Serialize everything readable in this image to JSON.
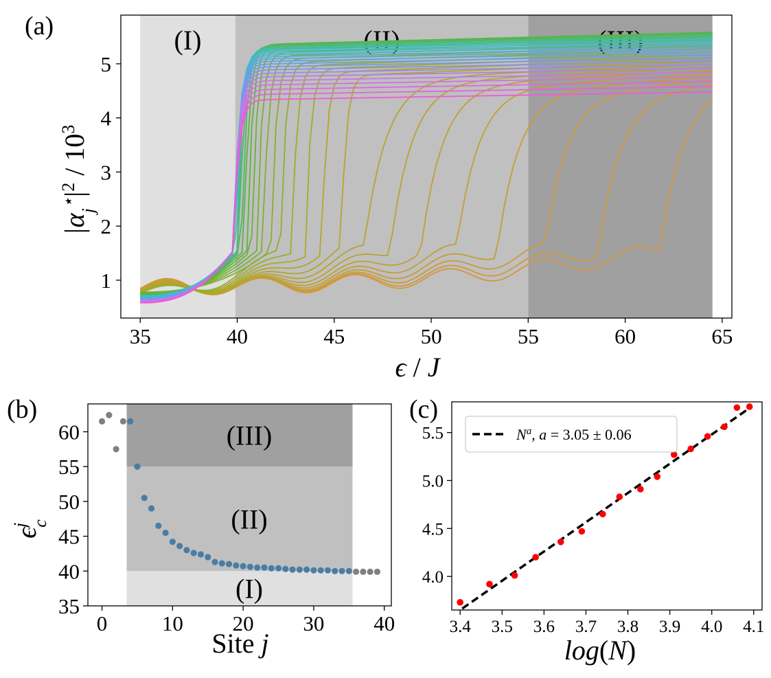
{
  "chart_data": [
    {
      "id": "a",
      "type": "line",
      "panel_label": "(a)",
      "xlabel": "ϵ / J",
      "ylabel": "|α_j^⋆|² / 10³",
      "xlim": [
        34,
        65.5
      ],
      "ylim": [
        0.3,
        5.9
      ],
      "xticks": [
        35,
        40,
        45,
        50,
        55,
        60,
        65
      ],
      "yticks": [
        1,
        2,
        3,
        4,
        5
      ],
      "regions": [
        {
          "label": "(I)",
          "x0": 35,
          "x1": 39.9,
          "color": "#e0e0e0"
        },
        {
          "label": "(II)",
          "x0": 39.9,
          "x1": 55,
          "color": "#c0c0c0"
        },
        {
          "label": "(III)",
          "x0": 55,
          "x1": 64.5,
          "color": "#a0a0a0"
        }
      ],
      "curve_count": 40,
      "color_order": "orange → olive/green → cyan/blue → magenta",
      "notes": "One curve per site j; each jumps near ϵ≈40 to a plateau of roughly 4.3–5.6 (×10³)."
    },
    {
      "id": "b",
      "type": "scatter",
      "panel_label": "(b)",
      "xlabel": "Site j",
      "ylabel": "ϵ_c^j",
      "xlim": [
        -2,
        41
      ],
      "ylim": [
        35,
        64
      ],
      "xticks": [
        0,
        10,
        20,
        30,
        40
      ],
      "yticks": [
        35,
        40,
        45,
        50,
        55,
        60
      ],
      "regions": [
        {
          "label": "(I)",
          "y0": 35,
          "y1": 40
        },
        {
          "label": "(II)",
          "y0": 40,
          "y1": 55
        },
        {
          "label": "(III)",
          "y0": 55,
          "y1": 64
        }
      ],
      "region_x": [
        3.5,
        35.5
      ],
      "x": [
        0,
        1,
        2,
        3,
        4,
        5,
        6,
        7,
        8,
        9,
        10,
        11,
        12,
        13,
        14,
        15,
        16,
        17,
        18,
        19,
        20,
        21,
        22,
        23,
        24,
        25,
        26,
        27,
        28,
        29,
        30,
        31,
        32,
        33,
        34,
        35,
        36,
        37,
        38,
        39
      ],
      "y": [
        61.5,
        62.4,
        57.5,
        61.5,
        61.5,
        55.0,
        50.5,
        49.0,
        46.5,
        45.5,
        44.2,
        43.6,
        43.0,
        42.6,
        42.4,
        42.0,
        41.3,
        41.1,
        41.0,
        40.8,
        40.7,
        40.6,
        40.5,
        40.5,
        40.4,
        40.4,
        40.3,
        40.2,
        40.2,
        40.2,
        40.1,
        40.1,
        40.1,
        40.0,
        40.0,
        40.0,
        39.9,
        39.9,
        39.9,
        39.9
      ],
      "colors": {
        "outside": "#808080",
        "inside": "#4a7da3"
      }
    },
    {
      "id": "c",
      "type": "scatter",
      "panel_label": "(c)",
      "xlabel": "log(N)",
      "ylabel": "",
      "xlim": [
        3.38,
        4.12
      ],
      "ylim": [
        3.65,
        5.82
      ],
      "xticks": [
        3.4,
        3.5,
        3.6,
        3.7,
        3.8,
        3.9,
        4.0,
        4.1
      ],
      "yticks": [
        4.0,
        4.5,
        5.0,
        5.5
      ],
      "x": [
        3.4,
        3.47,
        3.53,
        3.58,
        3.64,
        3.69,
        3.74,
        3.78,
        3.83,
        3.87,
        3.91,
        3.95,
        3.99,
        4.03,
        4.06,
        4.09
      ],
      "y": [
        3.73,
        3.92,
        4.01,
        4.2,
        4.36,
        4.47,
        4.65,
        4.83,
        4.91,
        5.04,
        5.27,
        5.33,
        5.46,
        5.56,
        5.76,
        5.77
      ],
      "fit": {
        "slope": 3.05,
        "x": [
          3.405,
          4.095
        ],
        "y": [
          3.665,
          5.77
        ]
      },
      "legend": {
        "label": "N^a, a = 3.05 ± 0.06",
        "position": "upper-left"
      },
      "point_color": "#ff0000"
    }
  ]
}
